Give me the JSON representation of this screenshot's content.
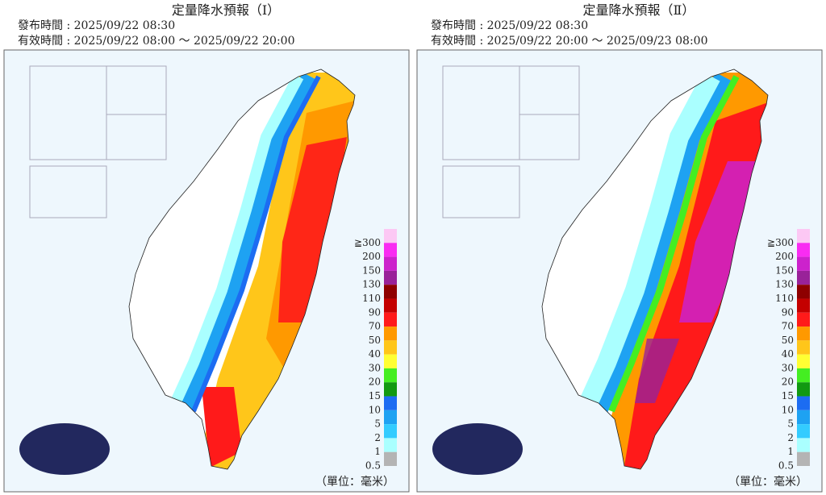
{
  "panels": [
    {
      "title": "定量降水預報（Ⅰ）",
      "issued": "發布時間 : 2025/09/22 08:30",
      "valid": "有效時間 : 2025/09/22 08:00 ～ 2025/09/22 20:00"
    },
    {
      "title": "定量降水預報（Ⅱ）",
      "issued": "發布時間 : 2025/09/22 08:30",
      "valid": "有效時間 : 2025/09/22 20:00 ～ 2025/09/23 08:00"
    }
  ],
  "legend": {
    "labels": [
      "≧300",
      "200",
      "150",
      "130",
      "110",
      "90",
      "70",
      "50",
      "40",
      "30",
      "20",
      "15",
      "10",
      "5",
      "2",
      "1",
      "0.5"
    ],
    "colors": [
      "#fcc8f4",
      "#f92cf2",
      "#cc22cc",
      "#992299",
      "#8e0000",
      "#c40000",
      "#ff1a1a",
      "#ff9900",
      "#ffc61a",
      "#ffff33",
      "#44ee22",
      "#119911",
      "#1c6cf2",
      "#1ea2f2",
      "#33ccff",
      "#aaffff",
      "#b4b4b4"
    ]
  },
  "unit": "（單位：毫米）"
}
